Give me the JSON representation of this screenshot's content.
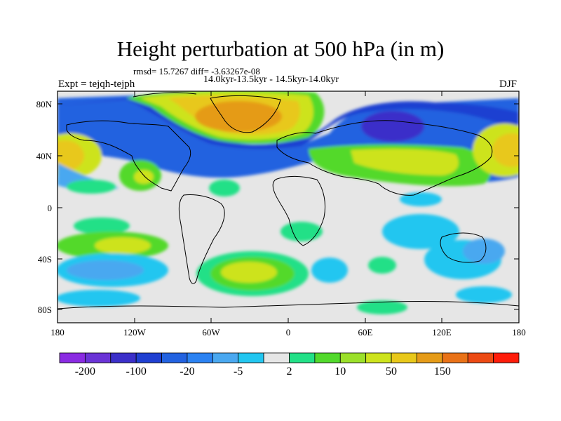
{
  "title": "Height perturbation at 500 hPa (in m)",
  "stats_line": "rmsd= 15.7267 diff= -3.63267e-08",
  "time_span": "14.0kyr-13.5kyr - 14.5kyr-14.0kyr",
  "experiment": "Expt = tejqh-tejph",
  "season": "DJF",
  "map": {
    "lat_labels": [
      "80N",
      "40N",
      "0",
      "40S",
      "80S"
    ],
    "lon_labels": [
      "180",
      "120W",
      "60W",
      "0",
      "60E",
      "120E",
      "180"
    ]
  },
  "colorbar": {
    "colors": [
      "#8a2be2",
      "#6a33d6",
      "#3b2fc9",
      "#1f3fd1",
      "#2262e0",
      "#2b82f2",
      "#4aa8f0",
      "#22c6f0",
      "#e6e6e6",
      "#22e087",
      "#52d92c",
      "#9be02a",
      "#cde31d",
      "#e8c81a",
      "#e59b18",
      "#e97217",
      "#ec4a13",
      "#ff1c0a"
    ],
    "labels": [
      "-200",
      "-100",
      "-20",
      "-5",
      "2",
      "10",
      "50",
      "150"
    ]
  },
  "colors": {
    "background": "#e6e6e6",
    "coast": "#000000"
  }
}
